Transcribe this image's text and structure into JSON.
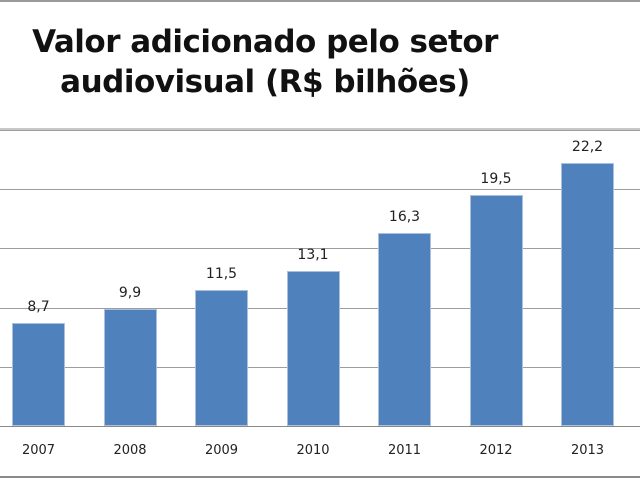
{
  "chart_data": {
    "type": "bar",
    "title": "Valor adicionado pelo setor audiovisual (R$ bilhões)",
    "title_lines": [
      "Valor adicionado pelo setor",
      "audiovisual (R$ bilhões)"
    ],
    "categories": [
      "2007",
      "2008",
      "2009",
      "2010",
      "2011",
      "2012",
      "2013"
    ],
    "values": [
      8.7,
      9.9,
      11.5,
      13.1,
      16.3,
      19.5,
      22.2
    ],
    "value_labels": [
      "8,7",
      "9,9",
      "11,5",
      "13,1",
      "16,3",
      "19,5",
      "22,2"
    ],
    "xlabel": "",
    "ylabel": "",
    "ylim": [
      0,
      25
    ],
    "grid": true,
    "gridline_step": 5,
    "legend": "none",
    "bar_color": "#4f81bd"
  }
}
